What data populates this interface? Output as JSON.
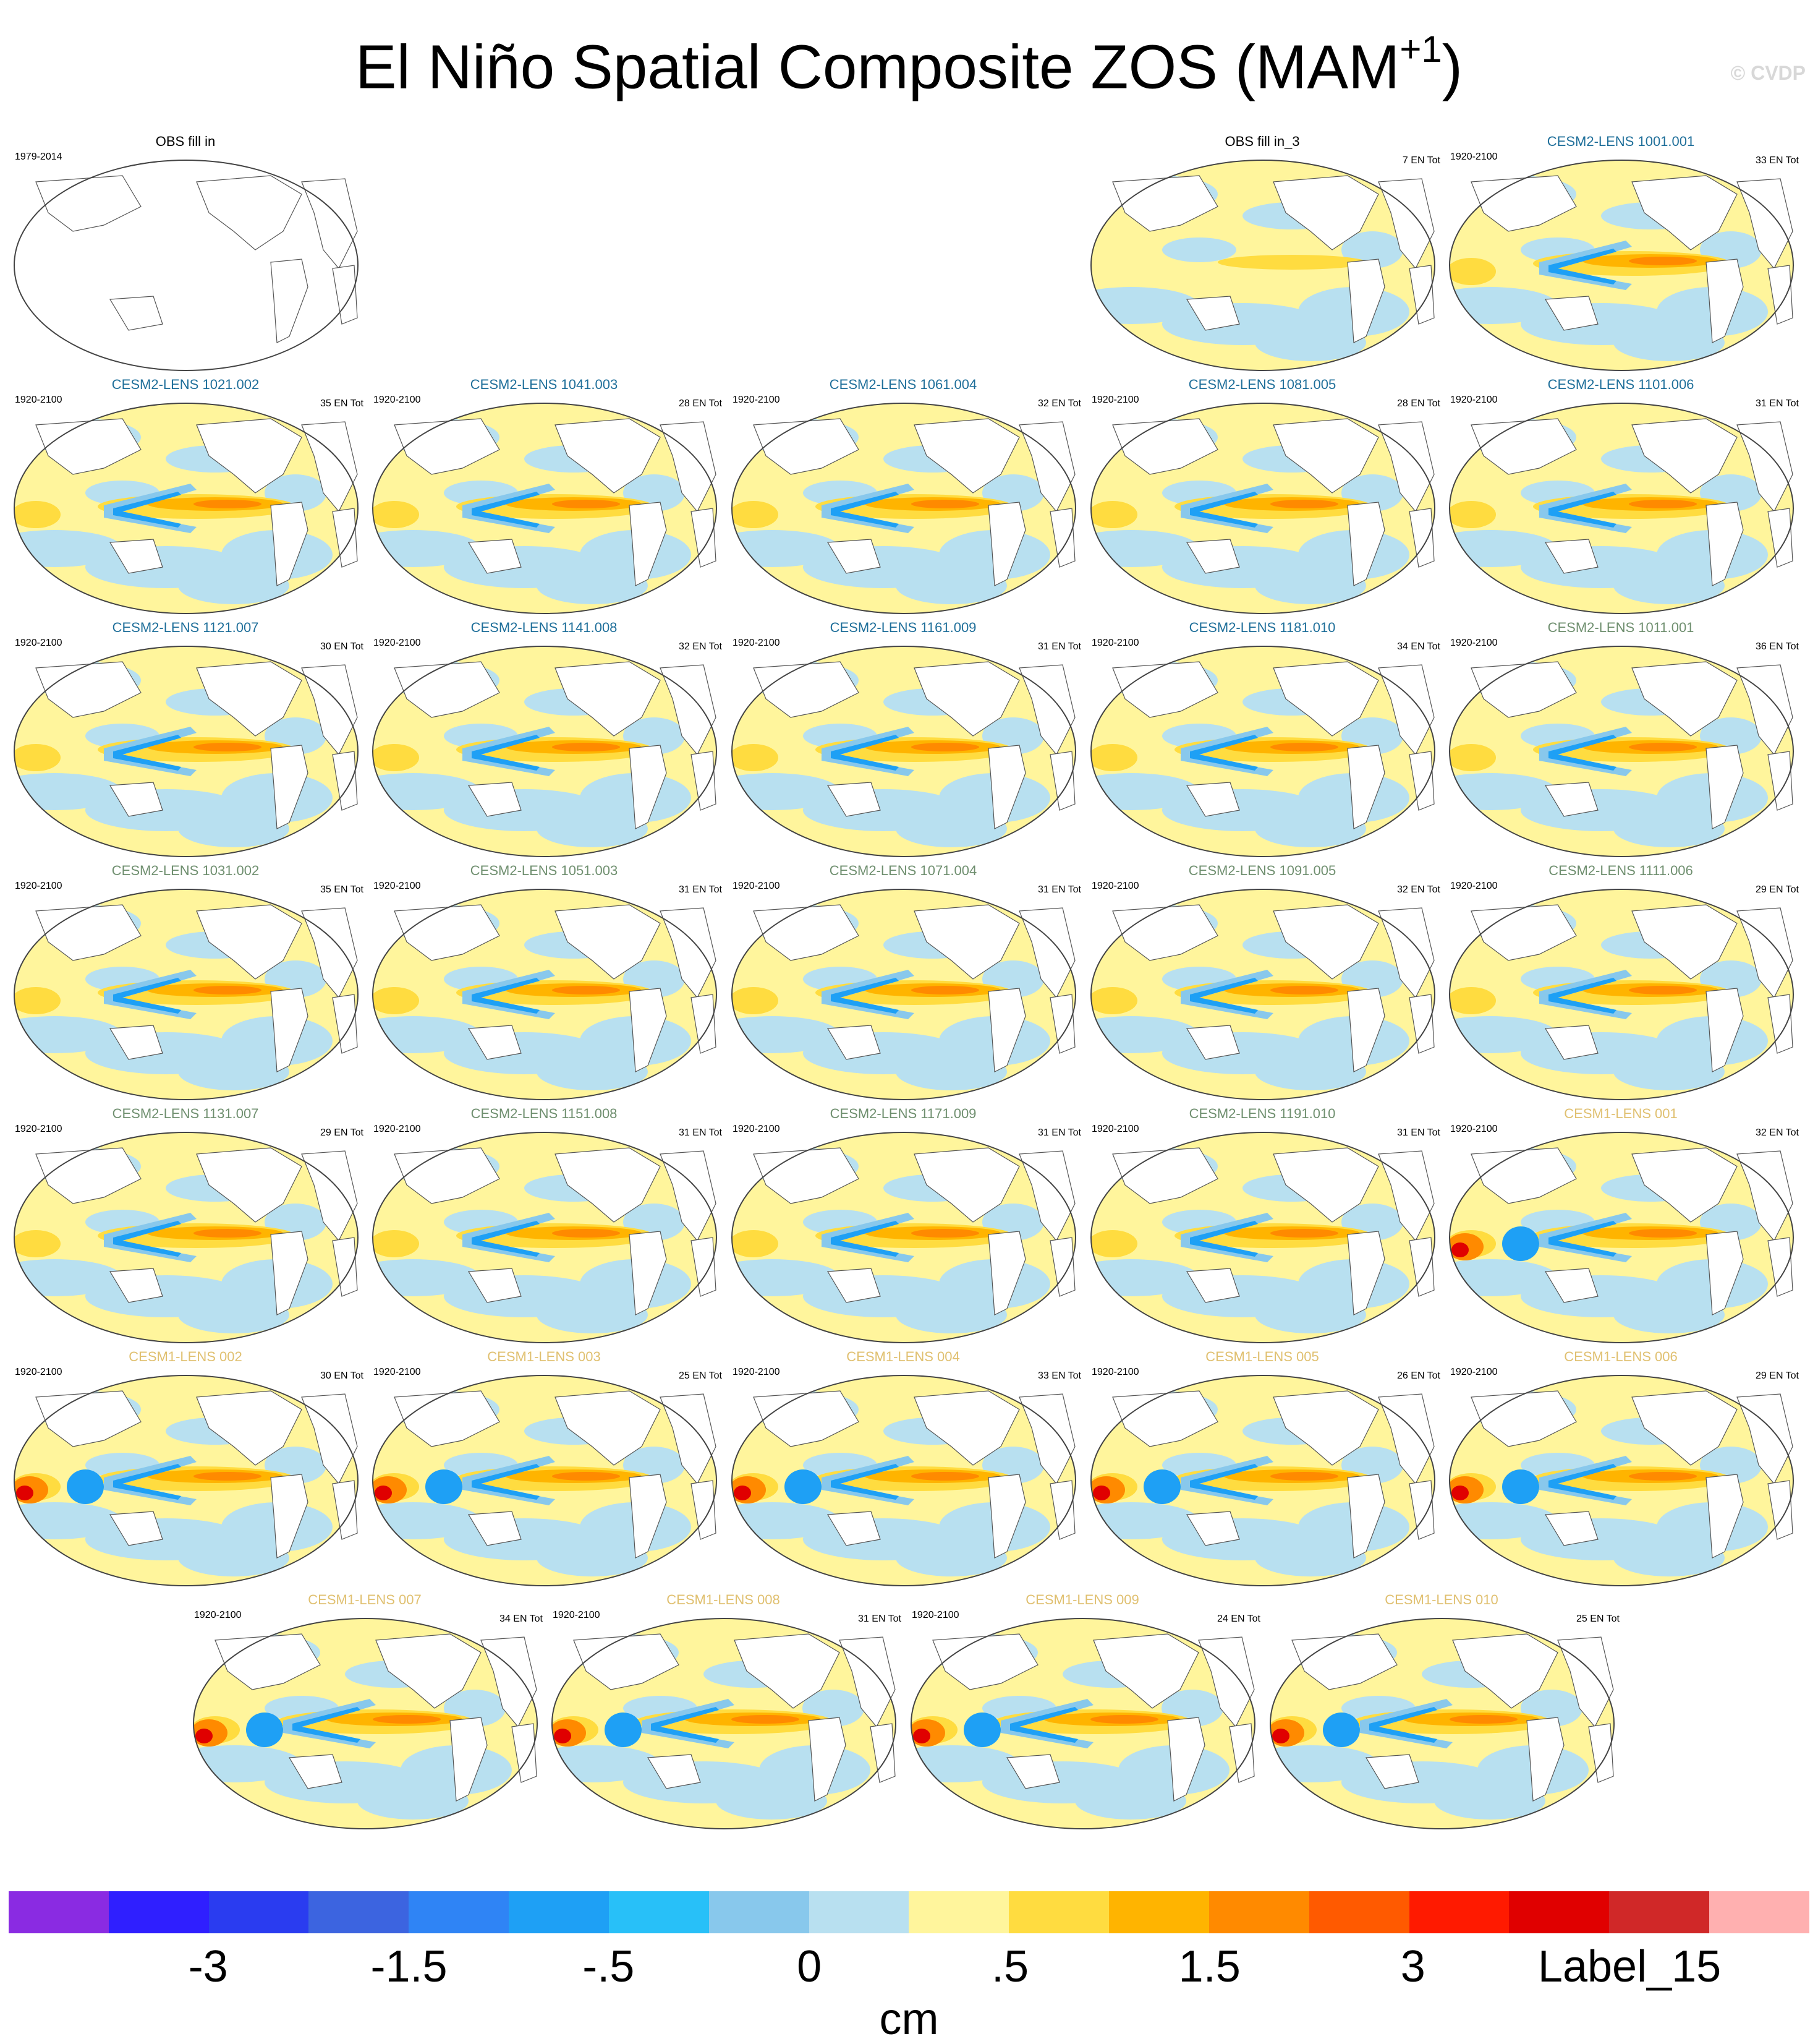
{
  "title": {
    "main": "El Niño Spatial Composite ZOS (MAM",
    "superscript": "+1",
    "close": ")"
  },
  "watermark": "© CVDP",
  "panels": [
    {
      "title": "OBS fill in",
      "period": "1979-2014",
      "count": "",
      "color": "#000000",
      "map": "empty"
    },
    {
      "title": "OBS fill in_3",
      "period": "",
      "count": "7 EN Tot",
      "color": "#000000",
      "map": "weak"
    },
    {
      "title": "CESM2-LENS 1001.001",
      "period": "1920-2100",
      "count": "33 EN Tot",
      "color": "#1f6f9a",
      "map": "cesm2"
    },
    {
      "title": "CESM2-LENS 1021.002",
      "period": "1920-2100",
      "count": "35 EN Tot",
      "color": "#1f6f9a",
      "map": "cesm2"
    },
    {
      "title": "CESM2-LENS 1041.003",
      "period": "1920-2100",
      "count": "28 EN Tot",
      "color": "#1f6f9a",
      "map": "cesm2"
    },
    {
      "title": "CESM2-LENS 1061.004",
      "period": "1920-2100",
      "count": "32 EN Tot",
      "color": "#1f6f9a",
      "map": "cesm2"
    },
    {
      "title": "CESM2-LENS 1081.005",
      "period": "1920-2100",
      "count": "28 EN Tot",
      "color": "#1f6f9a",
      "map": "cesm2"
    },
    {
      "title": "CESM2-LENS 1101.006",
      "period": "1920-2100",
      "count": "31 EN Tot",
      "color": "#1f6f9a",
      "map": "cesm2"
    },
    {
      "title": "CESM2-LENS 1121.007",
      "period": "1920-2100",
      "count": "30 EN Tot",
      "color": "#1f6f9a",
      "map": "cesm2"
    },
    {
      "title": "CESM2-LENS 1141.008",
      "period": "1920-2100",
      "count": "32 EN Tot",
      "color": "#1f6f9a",
      "map": "cesm2"
    },
    {
      "title": "CESM2-LENS 1161.009",
      "period": "1920-2100",
      "count": "31 EN Tot",
      "color": "#1f6f9a",
      "map": "cesm2"
    },
    {
      "title": "CESM2-LENS 1181.010",
      "period": "1920-2100",
      "count": "34 EN Tot",
      "color": "#1f6f9a",
      "map": "cesm2"
    },
    {
      "title": "CESM2-LENS 1011.001",
      "period": "1920-2100",
      "count": "36 EN Tot",
      "color": "#6f8f6f",
      "map": "cesm2"
    },
    {
      "title": "CESM2-LENS 1031.002",
      "period": "1920-2100",
      "count": "35 EN Tot",
      "color": "#6f8f6f",
      "map": "cesm2"
    },
    {
      "title": "CESM2-LENS 1051.003",
      "period": "1920-2100",
      "count": "31 EN Tot",
      "color": "#6f8f6f",
      "map": "cesm2"
    },
    {
      "title": "CESM2-LENS 1071.004",
      "period": "1920-2100",
      "count": "31 EN Tot",
      "color": "#6f8f6f",
      "map": "cesm2"
    },
    {
      "title": "CESM2-LENS 1091.005",
      "period": "1920-2100",
      "count": "32 EN Tot",
      "color": "#6f8f6f",
      "map": "cesm2"
    },
    {
      "title": "CESM2-LENS 1111.006",
      "period": "1920-2100",
      "count": "29 EN Tot",
      "color": "#6f8f6f",
      "map": "cesm2"
    },
    {
      "title": "CESM2-LENS 1131.007",
      "period": "1920-2100",
      "count": "29 EN Tot",
      "color": "#6f8f6f",
      "map": "cesm2"
    },
    {
      "title": "CESM2-LENS 1151.008",
      "period": "1920-2100",
      "count": "31 EN Tot",
      "color": "#6f8f6f",
      "map": "cesm2"
    },
    {
      "title": "CESM2-LENS 1171.009",
      "period": "1920-2100",
      "count": "31 EN Tot",
      "color": "#6f8f6f",
      "map": "cesm2"
    },
    {
      "title": "CESM2-LENS 1191.010",
      "period": "1920-2100",
      "count": "31 EN Tot",
      "color": "#6f8f6f",
      "map": "cesm2"
    },
    {
      "title": "CESM1-LENS 001",
      "period": "1920-2100",
      "count": "32 EN Tot",
      "color": "#e0c070",
      "map": "cesm1"
    },
    {
      "title": "CESM1-LENS 002",
      "period": "1920-2100",
      "count": "30 EN Tot",
      "color": "#e0c070",
      "map": "cesm1"
    },
    {
      "title": "CESM1-LENS 003",
      "period": "1920-2100",
      "count": "25 EN Tot",
      "color": "#e0c070",
      "map": "cesm1"
    },
    {
      "title": "CESM1-LENS 004",
      "period": "1920-2100",
      "count": "33 EN Tot",
      "color": "#e0c070",
      "map": "cesm1"
    },
    {
      "title": "CESM1-LENS 005",
      "period": "1920-2100",
      "count": "26 EN Tot",
      "color": "#e0c070",
      "map": "cesm1"
    },
    {
      "title": "CESM1-LENS 006",
      "period": "1920-2100",
      "count": "29 EN Tot",
      "color": "#e0c070",
      "map": "cesm1"
    },
    {
      "title": "CESM1-LENS 007",
      "period": "1920-2100",
      "count": "34 EN Tot",
      "color": "#e0c070",
      "map": "cesm1"
    },
    {
      "title": "CESM1-LENS 008",
      "period": "1920-2100",
      "count": "31 EN Tot",
      "color": "#e0c070",
      "map": "cesm1"
    },
    {
      "title": "CESM1-LENS 009",
      "period": "1920-2100",
      "count": "24 EN Tot",
      "color": "#e0c070",
      "map": "cesm1"
    },
    {
      "title": "CESM1-LENS 010",
      "period": "",
      "count": "25 EN Tot",
      "color": "#e0c070",
      "map": "cesm1"
    }
  ],
  "colorbar": {
    "colors": [
      "#8a2be2",
      "#2f1fff",
      "#2a3cf0",
      "#3c64e0",
      "#2f84f5",
      "#1ea0f5",
      "#28c0f8",
      "#88c8ec",
      "#b8e0f0",
      "#fff59c",
      "#ffdc40",
      "#ffb400",
      "#ff8a00",
      "#ff5a00",
      "#ff1a00",
      "#e00000",
      "#d02828",
      "#ffb0b0"
    ],
    "tick_labels": [
      "-3",
      "-1.5",
      "-.5",
      "0",
      ".5",
      "1.5",
      "3",
      "Label_15"
    ],
    "units": "cm"
  }
}
